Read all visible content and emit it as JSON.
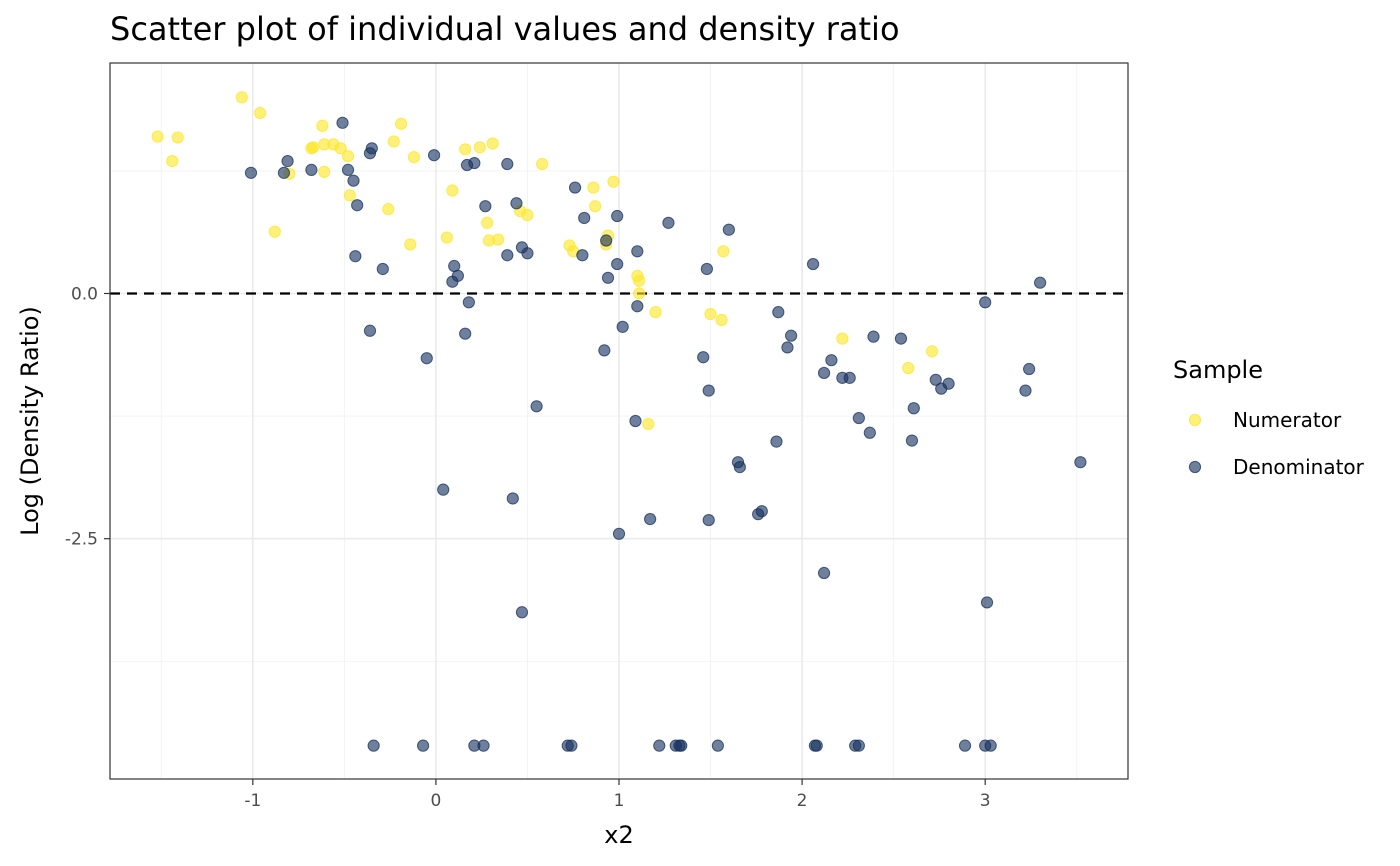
{
  "chart_data": {
    "type": "scatter",
    "title": "Scatter plot of individual values and density ratio",
    "xlabel": "x2",
    "ylabel": "Log (Density Ratio)",
    "xlim": [
      -1.78,
      3.78
    ],
    "ylim": [
      -4.95,
      2.35
    ],
    "x_ticks": [
      -1,
      0,
      1,
      2,
      3
    ],
    "x_tick_labels": [
      "-1",
      "0",
      "1",
      "2",
      "3"
    ],
    "y_ticks": [
      0,
      -2.5
    ],
    "y_tick_labels": [
      "0.0",
      "-2.5"
    ],
    "reference_line": {
      "y": 0,
      "style": "dashed",
      "color": "#000000"
    },
    "grid": true,
    "legend": {
      "title": "Sample",
      "placement": "right"
    },
    "series": [
      {
        "name": "Numerator",
        "color": "#FDE725",
        "points": [
          [
            -1.52,
            1.6
          ],
          [
            -1.44,
            1.35
          ],
          [
            -1.41,
            1.59
          ],
          [
            -1.06,
            2.0
          ],
          [
            -0.96,
            1.84
          ],
          [
            -0.88,
            0.63
          ],
          [
            -0.8,
            1.22
          ],
          [
            -0.68,
            1.48
          ],
          [
            -0.67,
            1.49
          ],
          [
            -0.62,
            1.71
          ],
          [
            -0.61,
            1.52
          ],
          [
            -0.61,
            1.24
          ],
          [
            -0.56,
            1.52
          ],
          [
            -0.52,
            1.48
          ],
          [
            -0.48,
            1.4
          ],
          [
            -0.47,
            1.0
          ],
          [
            -0.26,
            0.86
          ],
          [
            -0.23,
            1.55
          ],
          [
            -0.19,
            1.73
          ],
          [
            -0.14,
            0.5
          ],
          [
            -0.12,
            1.39
          ],
          [
            0.06,
            0.57
          ],
          [
            0.09,
            1.05
          ],
          [
            0.16,
            1.47
          ],
          [
            0.24,
            1.49
          ],
          [
            0.28,
            0.72
          ],
          [
            0.29,
            0.54
          ],
          [
            0.31,
            1.53
          ],
          [
            0.34,
            0.55
          ],
          [
            0.46,
            0.84
          ],
          [
            0.5,
            0.8
          ],
          [
            0.58,
            1.32
          ],
          [
            0.73,
            0.49
          ],
          [
            0.75,
            0.43
          ],
          [
            0.86,
            1.08
          ],
          [
            0.87,
            0.89
          ],
          [
            0.93,
            0.5
          ],
          [
            0.94,
            0.59
          ],
          [
            0.97,
            1.14
          ],
          [
            1.1,
            0.18
          ],
          [
            1.11,
            0.13
          ],
          [
            1.11,
            0.0
          ],
          [
            1.2,
            -0.19
          ],
          [
            1.5,
            -0.21
          ],
          [
            1.56,
            -0.27
          ],
          [
            1.57,
            0.43
          ],
          [
            2.22,
            -0.46
          ],
          [
            2.58,
            -0.76
          ],
          [
            2.71,
            -0.59
          ],
          [
            1.16,
            -1.33
          ]
        ]
      },
      {
        "name": "Denominator",
        "color": "#17325F",
        "points": [
          [
            -1.01,
            1.23
          ],
          [
            -0.83,
            1.23
          ],
          [
            -0.81,
            1.35
          ],
          [
            -0.68,
            1.26
          ],
          [
            -0.51,
            1.74
          ],
          [
            -0.48,
            1.26
          ],
          [
            -0.45,
            1.15
          ],
          [
            -0.43,
            0.9
          ],
          [
            -0.44,
            0.38
          ],
          [
            -0.36,
            1.43
          ],
          [
            -0.35,
            1.48
          ],
          [
            -0.36,
            -0.38
          ],
          [
            -0.29,
            0.25
          ],
          [
            -0.05,
            -0.66
          ],
          [
            -0.01,
            1.41
          ],
          [
            0.04,
            -2.0
          ],
          [
            0.09,
            0.12
          ],
          [
            0.1,
            0.28
          ],
          [
            0.12,
            0.18
          ],
          [
            0.16,
            -0.41
          ],
          [
            0.17,
            1.31
          ],
          [
            0.18,
            -0.09
          ],
          [
            0.21,
            1.33
          ],
          [
            0.27,
            0.89
          ],
          [
            0.39,
            0.39
          ],
          [
            0.39,
            1.32
          ],
          [
            0.42,
            -2.09
          ],
          [
            0.44,
            0.92
          ],
          [
            0.47,
            -3.25
          ],
          [
            0.47,
            0.47
          ],
          [
            0.5,
            0.41
          ],
          [
            0.55,
            -1.15
          ],
          [
            0.76,
            1.08
          ],
          [
            0.8,
            0.39
          ],
          [
            0.81,
            0.77
          ],
          [
            0.92,
            -0.58
          ],
          [
            0.93,
            0.54
          ],
          [
            0.94,
            0.16
          ],
          [
            0.99,
            0.3
          ],
          [
            0.99,
            0.79
          ],
          [
            1.0,
            -2.45
          ],
          [
            1.02,
            -0.34
          ],
          [
            1.09,
            -1.3
          ],
          [
            1.1,
            0.43
          ],
          [
            1.1,
            -0.13
          ],
          [
            1.17,
            -2.3
          ],
          [
            1.27,
            0.72
          ],
          [
            1.46,
            -0.65
          ],
          [
            1.48,
            0.25
          ],
          [
            1.49,
            -0.99
          ],
          [
            1.49,
            -2.31
          ],
          [
            1.6,
            0.65
          ],
          [
            1.65,
            -1.72
          ],
          [
            1.66,
            -1.77
          ],
          [
            1.76,
            -2.25
          ],
          [
            1.78,
            -2.22
          ],
          [
            1.86,
            -1.51
          ],
          [
            1.87,
            -0.19
          ],
          [
            1.92,
            -0.55
          ],
          [
            1.94,
            -0.43
          ],
          [
            2.06,
            0.3
          ],
          [
            2.12,
            -0.81
          ],
          [
            2.12,
            -2.85
          ],
          [
            2.16,
            -0.68
          ],
          [
            2.22,
            -0.86
          ],
          [
            2.26,
            -0.86
          ],
          [
            2.31,
            -1.27
          ],
          [
            2.37,
            -1.42
          ],
          [
            2.39,
            -0.44
          ],
          [
            2.54,
            -0.46
          ],
          [
            2.6,
            -1.5
          ],
          [
            2.61,
            -1.17
          ],
          [
            2.73,
            -0.88
          ],
          [
            2.76,
            -0.97
          ],
          [
            2.8,
            -0.92
          ],
          [
            3.0,
            -0.09
          ],
          [
            3.01,
            -3.15
          ],
          [
            3.22,
            -0.99
          ],
          [
            3.24,
            -0.77
          ],
          [
            3.3,
            0.11
          ],
          [
            3.52,
            -1.72
          ],
          [
            -0.34,
            -4.61
          ],
          [
            -0.07,
            -4.61
          ],
          [
            0.21,
            -4.61
          ],
          [
            0.26,
            -4.61
          ],
          [
            0.72,
            -4.61
          ],
          [
            0.74,
            -4.61
          ],
          [
            1.22,
            -4.61
          ],
          [
            1.31,
            -4.61
          ],
          [
            1.33,
            -4.61
          ],
          [
            1.34,
            -4.61
          ],
          [
            1.54,
            -4.61
          ],
          [
            2.07,
            -4.61
          ],
          [
            2.08,
            -4.61
          ],
          [
            2.29,
            -4.61
          ],
          [
            2.31,
            -4.61
          ],
          [
            2.89,
            -4.61
          ],
          [
            3.0,
            -4.61
          ],
          [
            3.03,
            -4.61
          ]
        ]
      }
    ]
  }
}
